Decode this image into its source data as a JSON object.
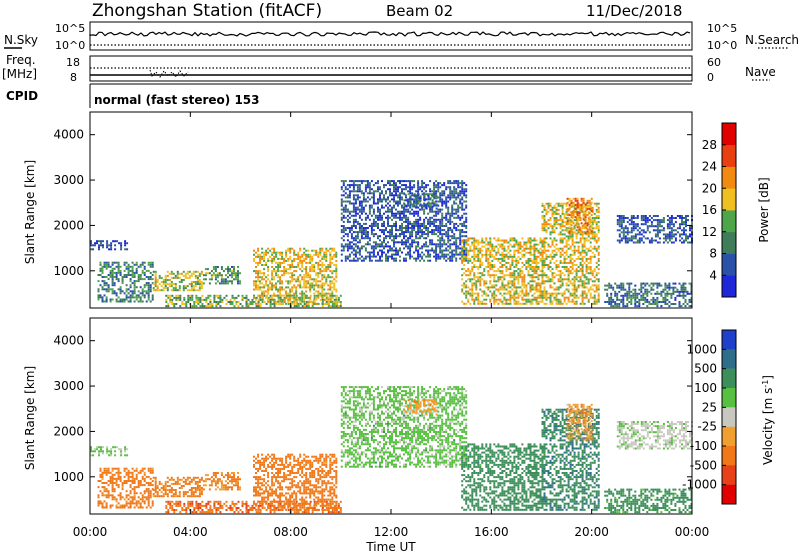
{
  "header": {
    "title": "Zhongshan Station (fitACF)",
    "beam": "Beam 02",
    "date": "11/Dec/2018"
  },
  "panels": {
    "nsky": {
      "label": "N.Sky",
      "ticks": [
        "10^5",
        "10^0"
      ],
      "right_label": "N.Search",
      "right_ticks": [
        "10^5",
        "10^0"
      ]
    },
    "freq": {
      "label": "Freq.",
      "unit": "[MHz]",
      "ticks": [
        "18",
        "8"
      ],
      "right_label": "Nave",
      "right_ticks": [
        "60",
        "0"
      ]
    },
    "cpid": {
      "label": "CPID",
      "text": "normal (fast stereo) 153"
    }
  },
  "range_axis": {
    "label": "Slant Range [km]",
    "ticks": [
      "4000",
      "3000",
      "2000",
      "1000"
    ]
  },
  "time_axis": {
    "label": "Time UT",
    "ticks": [
      "00:00",
      "04:00",
      "08:00",
      "12:00",
      "16:00",
      "20:00",
      "00:00"
    ]
  },
  "power_scale": {
    "label": "Power [dB]",
    "ticks": [
      "28",
      "24",
      "20",
      "16",
      "12",
      "8",
      "4"
    ],
    "colors": [
      "#1f28d8",
      "#2a52a8",
      "#3f7d5a",
      "#4fa54a",
      "#f0c020",
      "#f08a10",
      "#e84010",
      "#e00000"
    ]
  },
  "velocity_scale": {
    "label": "Velocity [m s",
    "unit_sup": "-1",
    "label_end": "]",
    "ticks": [
      "1000",
      "500",
      "100",
      "25",
      "-25",
      "-100",
      "-500",
      "-1000"
    ],
    "colors": [
      "#1f40c8",
      "#2f6e8a",
      "#3c8f5a",
      "#58c040",
      "#c8c8c0",
      "#f0a030",
      "#f07818",
      "#e84018",
      "#e00000"
    ]
  },
  "chart_data": {
    "type": "heatmap",
    "title": "Zhongshan Station (fitACF)",
    "x_range": [
      "00:00",
      "24:00"
    ],
    "y_range_km": [
      180,
      4500
    ],
    "xlabel": "Time UT",
    "ylabel": "Slant Range [km]",
    "regions": [
      {
        "t0": 0.0,
        "t1": 1.5,
        "r0": 1450,
        "r1": 1650,
        "power": 6,
        "velocity": 30
      },
      {
        "t0": 0.3,
        "t1": 2.5,
        "r0": 300,
        "r1": 1200,
        "power": 10,
        "velocity": -200
      },
      {
        "t0": 2.5,
        "t1": 4.5,
        "r0": 550,
        "r1": 1000,
        "power": 16,
        "velocity": -150
      },
      {
        "t0": 4.5,
        "t1": 6.0,
        "r0": 700,
        "r1": 1100,
        "power": 12,
        "velocity": -120
      },
      {
        "t0": 3.0,
        "t1": 10.0,
        "r0": 200,
        "r1": 450,
        "power": 14,
        "velocity": -400
      },
      {
        "t0": 6.5,
        "t1": 9.8,
        "r0": 250,
        "r1": 1500,
        "power": 18,
        "velocity": -250
      },
      {
        "t0": 10.0,
        "t1": 15.0,
        "r0": 1200,
        "r1": 3000,
        "power": 6,
        "velocity": 50
      },
      {
        "t0": 12.5,
        "t1": 13.8,
        "r0": 2350,
        "r1": 2700,
        "power": 8,
        "velocity": -60
      },
      {
        "t0": 14.8,
        "t1": 18.0,
        "r0": 250,
        "r1": 1700,
        "power": 18,
        "velocity": 300
      },
      {
        "t0": 18.0,
        "t1": 20.3,
        "r0": 250,
        "r1": 2500,
        "power": 18,
        "velocity": 400
      },
      {
        "t0": 19.0,
        "t1": 20.0,
        "r0": 1800,
        "r1": 2600,
        "power": 22,
        "velocity": -80
      },
      {
        "t0": 21.0,
        "t1": 24.0,
        "r0": 1600,
        "r1": 2200,
        "power": 6,
        "velocity": 10
      },
      {
        "t0": 20.5,
        "t1": 24.0,
        "r0": 200,
        "r1": 700,
        "power": 8,
        "velocity": 200
      }
    ]
  }
}
